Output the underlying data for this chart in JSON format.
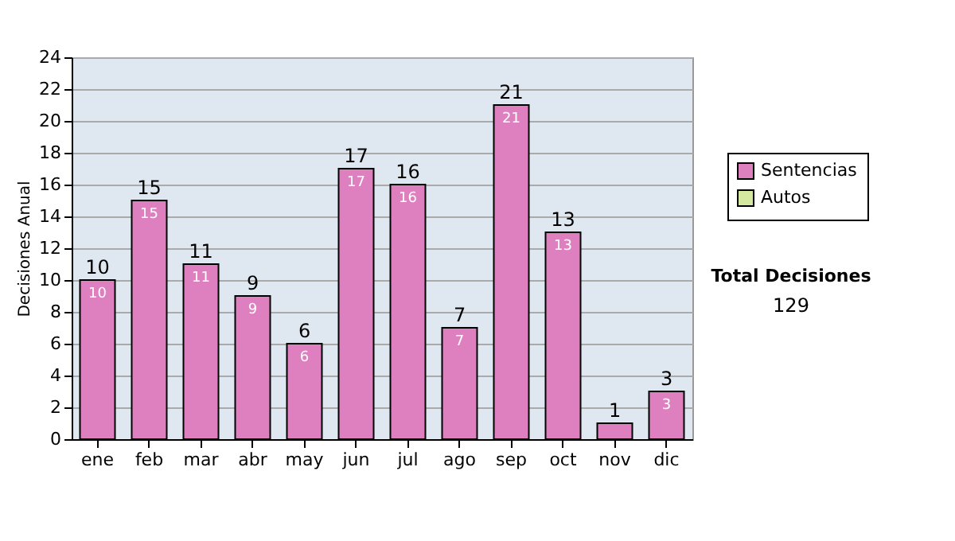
{
  "chart_data": {
    "type": "bar",
    "stacked": true,
    "ylabel": "Decisiones Anual",
    "categories": [
      "ene",
      "feb",
      "mar",
      "abr",
      "may",
      "jun",
      "jul",
      "ago",
      "sep",
      "oct",
      "nov",
      "dic"
    ],
    "series": [
      {
        "name": "Sentencias",
        "color": "#de80c0",
        "values": [
          10,
          15,
          11,
          9,
          6,
          17,
          16,
          7,
          21,
          13,
          1,
          3
        ],
        "value_labels": [
          "10",
          "15",
          "11",
          "9",
          "6",
          "17",
          "16",
          "7",
          "21",
          "13",
          null,
          "3"
        ]
      },
      {
        "name": "Autos",
        "color": "#d4e8a0",
        "values": [
          0,
          0,
          0,
          0,
          0,
          0,
          0,
          0,
          0,
          0,
          0,
          0
        ]
      }
    ],
    "totals": [
      "10",
      "15",
      "11",
      "9",
      "6",
      "17",
      "16",
      "7",
      "21",
      "13",
      "1",
      "3"
    ],
    "ylim": [
      0,
      24
    ],
    "yticks": [
      0,
      2,
      4,
      6,
      8,
      10,
      12,
      14,
      16,
      18,
      20,
      22,
      24
    ],
    "grid": "y",
    "legend": "right",
    "annotations": [
      "Total Decisiones",
      "129"
    ]
  }
}
